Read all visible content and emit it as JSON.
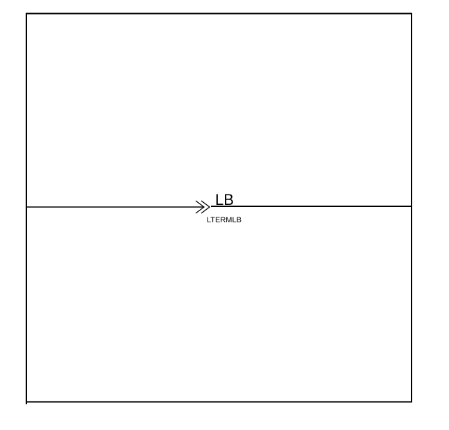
{
  "diagram": {
    "pin_name": "LB",
    "net_label": "LTERMLB",
    "stroke_color": "#000000",
    "background_color": "#ffffff"
  }
}
